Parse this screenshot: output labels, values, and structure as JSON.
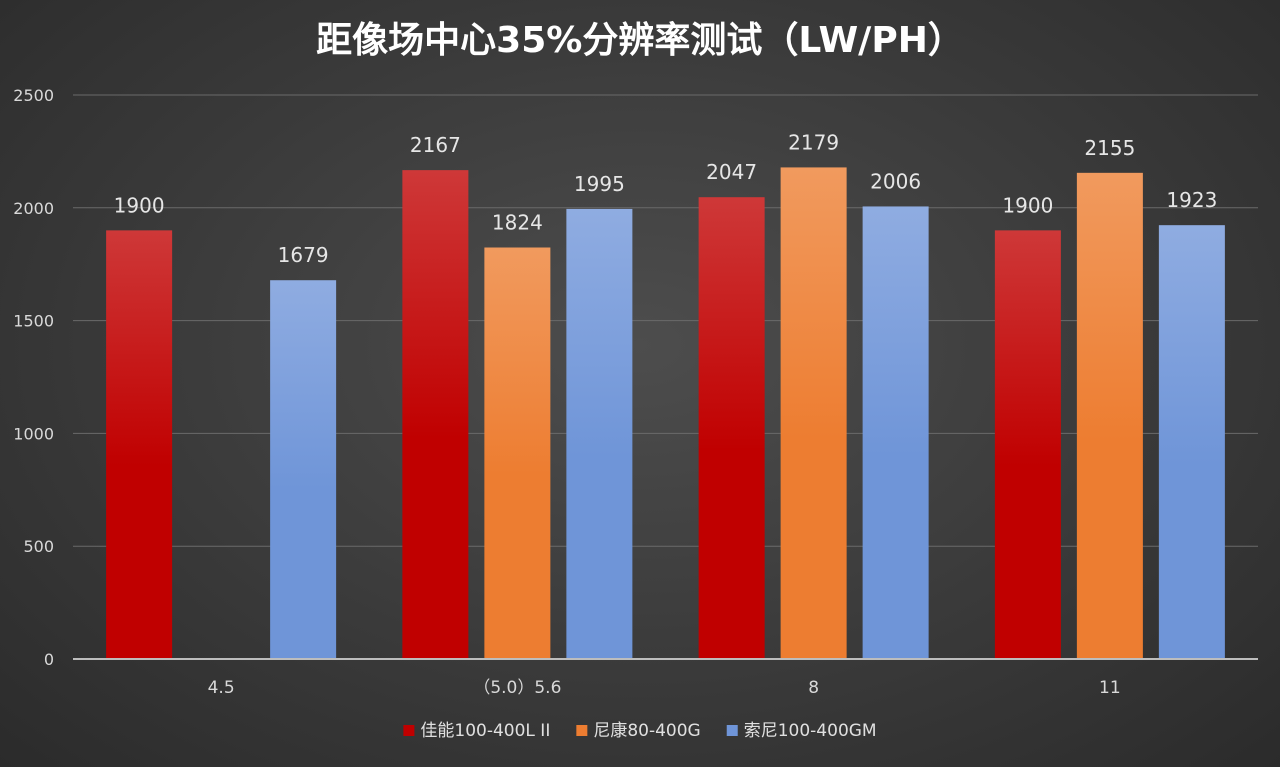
{
  "chart_data": {
    "type": "bar",
    "title": "距像场中心35%分辨率测试（LW/PH）",
    "categories": [
      "4.5",
      "（5.0）5.6",
      "8",
      "11"
    ],
    "series": [
      {
        "name": "佳能100-400L II",
        "color": "#c00000",
        "values": [
          1900,
          2167,
          2047,
          1900
        ]
      },
      {
        "name": "尼康80-400G",
        "color": "#ed7d31",
        "values": [
          null,
          1824,
          2179,
          2155
        ]
      },
      {
        "name": "索尼100-400GM",
        "color": "#6f95d8",
        "values": [
          1679,
          1995,
          2006,
          1923
        ]
      }
    ],
    "ylim": [
      0,
      2500
    ],
    "yticks": [
      0,
      500,
      1000,
      1500,
      2000,
      2500
    ],
    "grid": true,
    "legend_position": "bottom"
  }
}
